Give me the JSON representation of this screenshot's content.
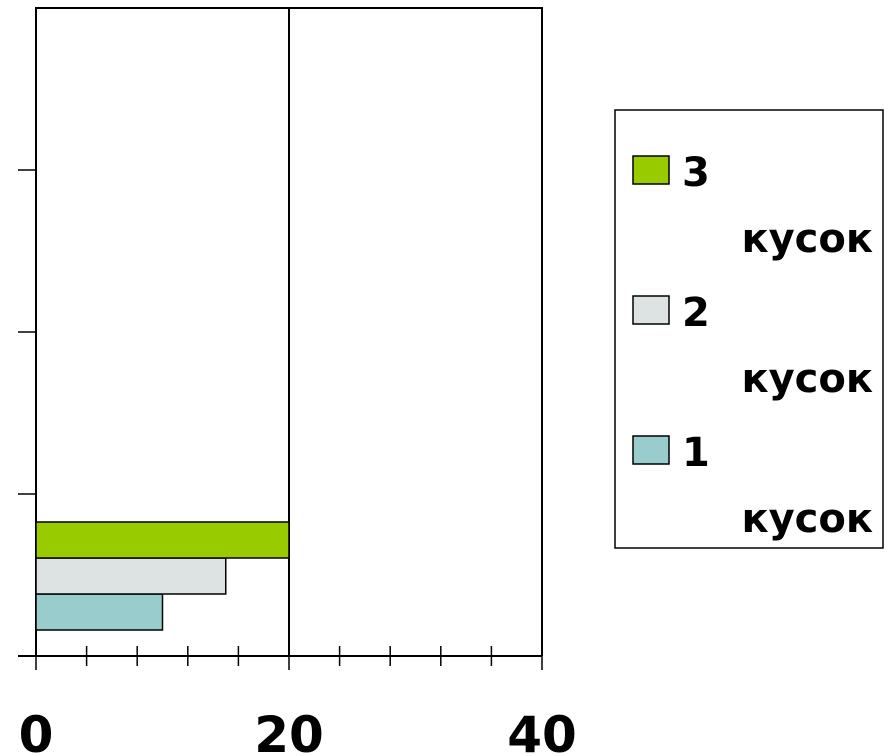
{
  "chart_data": {
    "type": "bar",
    "orientation": "horizontal",
    "categories": [
      ""
    ],
    "series": [
      {
        "name": "1 кусок",
        "values": [
          10
        ],
        "color": "#99cccc"
      },
      {
        "name": "2 кусок",
        "values": [
          15
        ],
        "color": "#dde3e3"
      },
      {
        "name": "3 кусок",
        "values": [
          20
        ],
        "color": "#99cc00"
      }
    ],
    "xlim": [
      0,
      40
    ],
    "x_tick_labels": [
      "0",
      "20",
      "40"
    ],
    "grid": "vertical line at 20",
    "legend_placement": "right",
    "title": "",
    "xlabel": "",
    "ylabel": ""
  },
  "legend": {
    "items": [
      {
        "num": "3",
        "word": "кусок",
        "color": "#99cc00"
      },
      {
        "num": "2",
        "word": "кусок",
        "color": "#dde3e3"
      },
      {
        "num": "1",
        "word": "кусок",
        "color": "#99cccc"
      }
    ]
  }
}
